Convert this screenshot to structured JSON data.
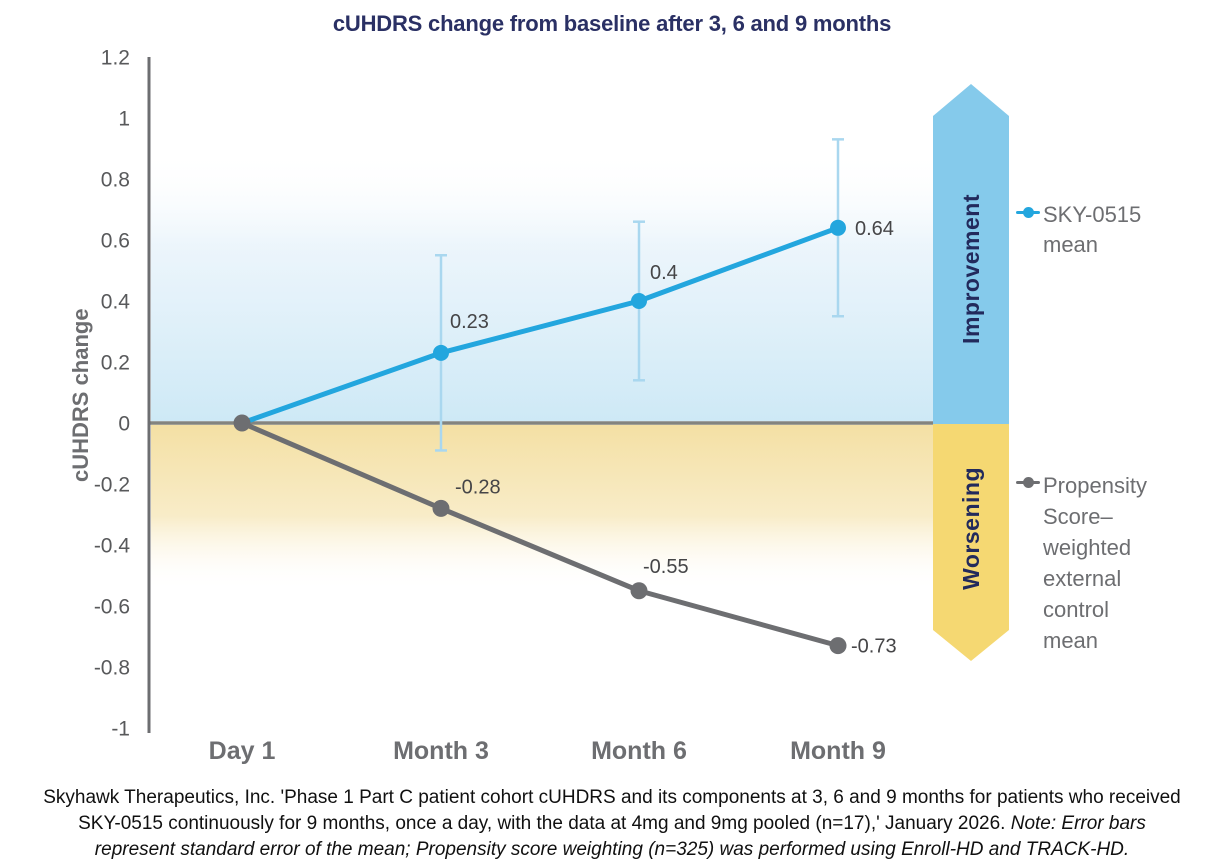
{
  "title": "cUHDRS change from baseline after 3, 6 and 9 months",
  "y_axis": {
    "label": "cUHDRS change",
    "ticks": [
      "1.2",
      "1",
      "0.8",
      "0.6",
      "0.4",
      "0.2",
      "0",
      "-0.2",
      "-0.4",
      "-0.6",
      "-0.8",
      "-1"
    ]
  },
  "x_axis": {
    "labels": [
      "Day 1",
      "Month 3",
      "Month 6",
      "Month 9"
    ]
  },
  "annotations": {
    "improvement": "Improvement",
    "worsening": "Worsening"
  },
  "legend": [
    {
      "label": "SKY-0515 mean",
      "color": "#23A6DE"
    },
    {
      "label": "Propensity Score–weighted external control mean",
      "color": "#6D6E71"
    }
  ],
  "colors": {
    "sky_line": "#23A6DE",
    "control_line": "#6D6E71",
    "error_bar": "#A9D7EF",
    "improvement_arrow": "#85CAEB",
    "worsening_arrow": "#F5D872",
    "title_navy": "#2A3064",
    "positive_region_blue": "#CEE9F6",
    "negative_region_gold": "#F4E0A4",
    "zero_line": "#83847F"
  },
  "footer": {
    "citation": "Skyhawk Therapeutics, Inc. 'Phase 1 Part C patient cohort cUHDRS and its components at 3, 6 and 9 months for patients who received SKY-0515 continuously for 9 months, once a day, with the data at 4mg and 9mg pooled (n=17),' January 2026. ",
    "note": "Note: Error bars represent standard error of the mean; Propensity score weighting (n=325) was performed using Enroll-HD and TRACK-HD."
  },
  "chart_data": {
    "type": "line",
    "title": "cUHDRS change from baseline after 3, 6 and 9 months",
    "categories": [
      "Day 1",
      "Month 3",
      "Month 6",
      "Month 9"
    ],
    "xlabel": "",
    "ylabel": "cUHDRS change",
    "ylim": [
      -1,
      1.2
    ],
    "ytick_step": 0.2,
    "grid": false,
    "legend_position": "right",
    "series": [
      {
        "name": "SKY-0515 mean",
        "color": "#23A6DE",
        "values": [
          0,
          0.23,
          0.4,
          0.64
        ],
        "point_labels": [
          "",
          "0.23",
          "0.4",
          "0.64"
        ],
        "error_bars": [
          null,
          0.32,
          0.26,
          0.29
        ]
      },
      {
        "name": "Propensity Score–weighted external control mean",
        "color": "#6D6E71",
        "values": [
          0,
          -0.28,
          -0.55,
          -0.73
        ],
        "point_labels": [
          "",
          "-0.28",
          "-0.55",
          "-0.73"
        ],
        "error_bars": null
      }
    ]
  }
}
